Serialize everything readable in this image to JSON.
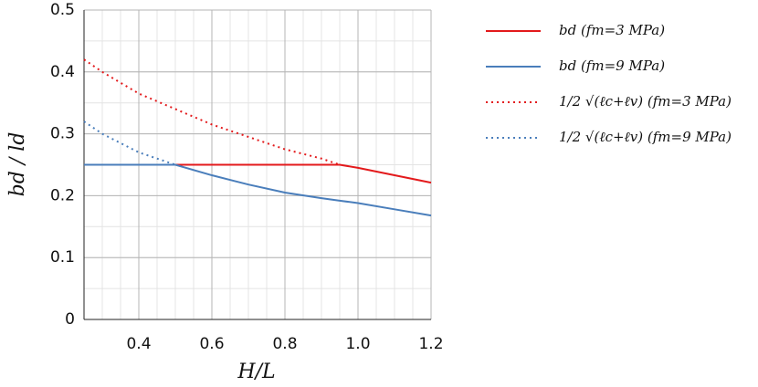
{
  "chart_data": {
    "type": "line",
    "x_label": "H/L",
    "y_label": "bd / ld",
    "x": [
      0.25,
      0.3,
      0.4,
      0.5,
      0.6,
      0.7,
      0.8,
      0.9,
      0.95,
      1.0,
      1.1,
      1.2
    ],
    "series": [
      {
        "name": "bd (fm=3 MPa)",
        "color": "#e31a1c",
        "dashed": false,
        "values": [
          0.25,
          0.25,
          0.25,
          0.25,
          0.25,
          0.25,
          0.25,
          0.25,
          0.25,
          0.245,
          0.233,
          0.221
        ]
      },
      {
        "name": "bd (fm=9 MPa)",
        "color": "#4a7ebb",
        "dashed": false,
        "values": [
          0.25,
          0.25,
          0.25,
          0.25,
          0.233,
          0.218,
          0.205,
          0.196,
          0.192,
          0.188,
          0.178,
          0.168
        ]
      },
      {
        "name": "1/2 √(ℓc+ℓv)  (fm=3 MPa)",
        "color": "#e31a1c",
        "dashed": true,
        "values": [
          0.42,
          0.4,
          0.365,
          0.34,
          0.315,
          0.295,
          0.275,
          0.26,
          0.25,
          null,
          null,
          null
        ]
      },
      {
        "name": "1/2 √(ℓc+ℓv)  (fm=9 MPa)",
        "color": "#4a7ebb",
        "dashed": true,
        "values": [
          0.32,
          0.3,
          0.27,
          0.25,
          null,
          null,
          null,
          null,
          null,
          null,
          null,
          null
        ]
      }
    ],
    "xlim": [
      0.25,
      1.2
    ],
    "ylim": [
      0,
      0.5
    ],
    "xticks": [
      0.4,
      0.6,
      0.8,
      {
        "value": 1.0,
        "label": "1.0"
      },
      1.2
    ],
    "yticks": [
      0,
      0.1,
      0.2,
      0.3,
      0.4,
      0.5
    ],
    "grid": true
  }
}
